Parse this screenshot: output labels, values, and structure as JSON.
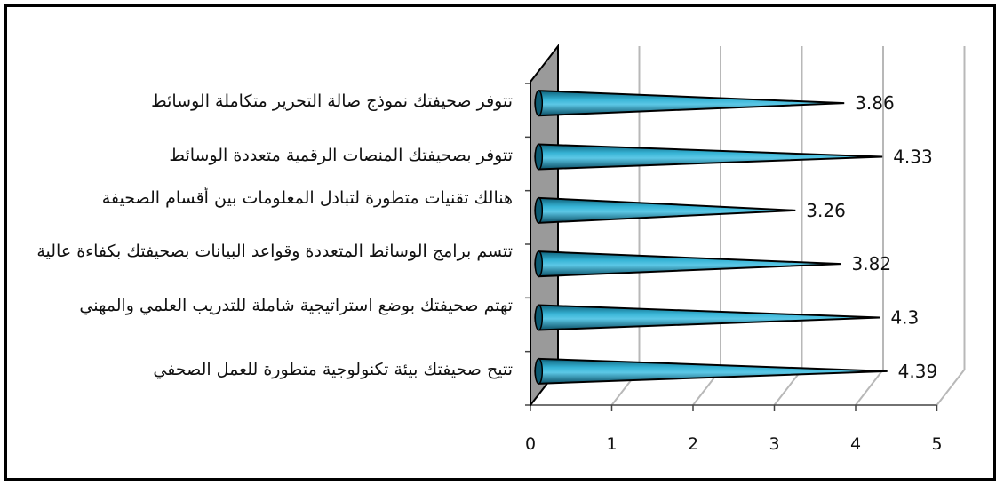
{
  "chart_data": {
    "type": "bar",
    "orientation": "horizontal",
    "categories": [
      "تتوفر صحيفتك نموذج صالة التحرير متكاملة الوسائط",
      "تتوفر بصحيفتك المنصات الرقمية متعددة الوسائط",
      "هنالك تقنيات متطورة لتبادل المعلومات بين أقسام الصحيفة",
      "تتسم برامج الوسائط المتعددة وقواعد البيانات بصحيفتك بكفاءة عالية",
      "تهتم صحيفتك بوضع استراتيجية شاملة للتدريب العلمي والمهني",
      "تتيح صحيفتك بيئة تكنولوجية متطورة للعمل الصحفي"
    ],
    "values": [
      3.86,
      4.33,
      3.26,
      3.82,
      4.3,
      4.39
    ],
    "value_labels": [
      "3.86",
      "4.33",
      "3.26",
      "3.82",
      "4.3",
      "4.39"
    ],
    "xlim": [
      0,
      5
    ],
    "x_ticks": [
      "0",
      "1",
      "2",
      "3",
      "4",
      "5"
    ],
    "grid": true,
    "colors": {
      "bar": "#2aa7c7",
      "bar_dark": "#0b5a72",
      "wall": "#9a9a9a",
      "grid": "#b8b8b8"
    }
  }
}
